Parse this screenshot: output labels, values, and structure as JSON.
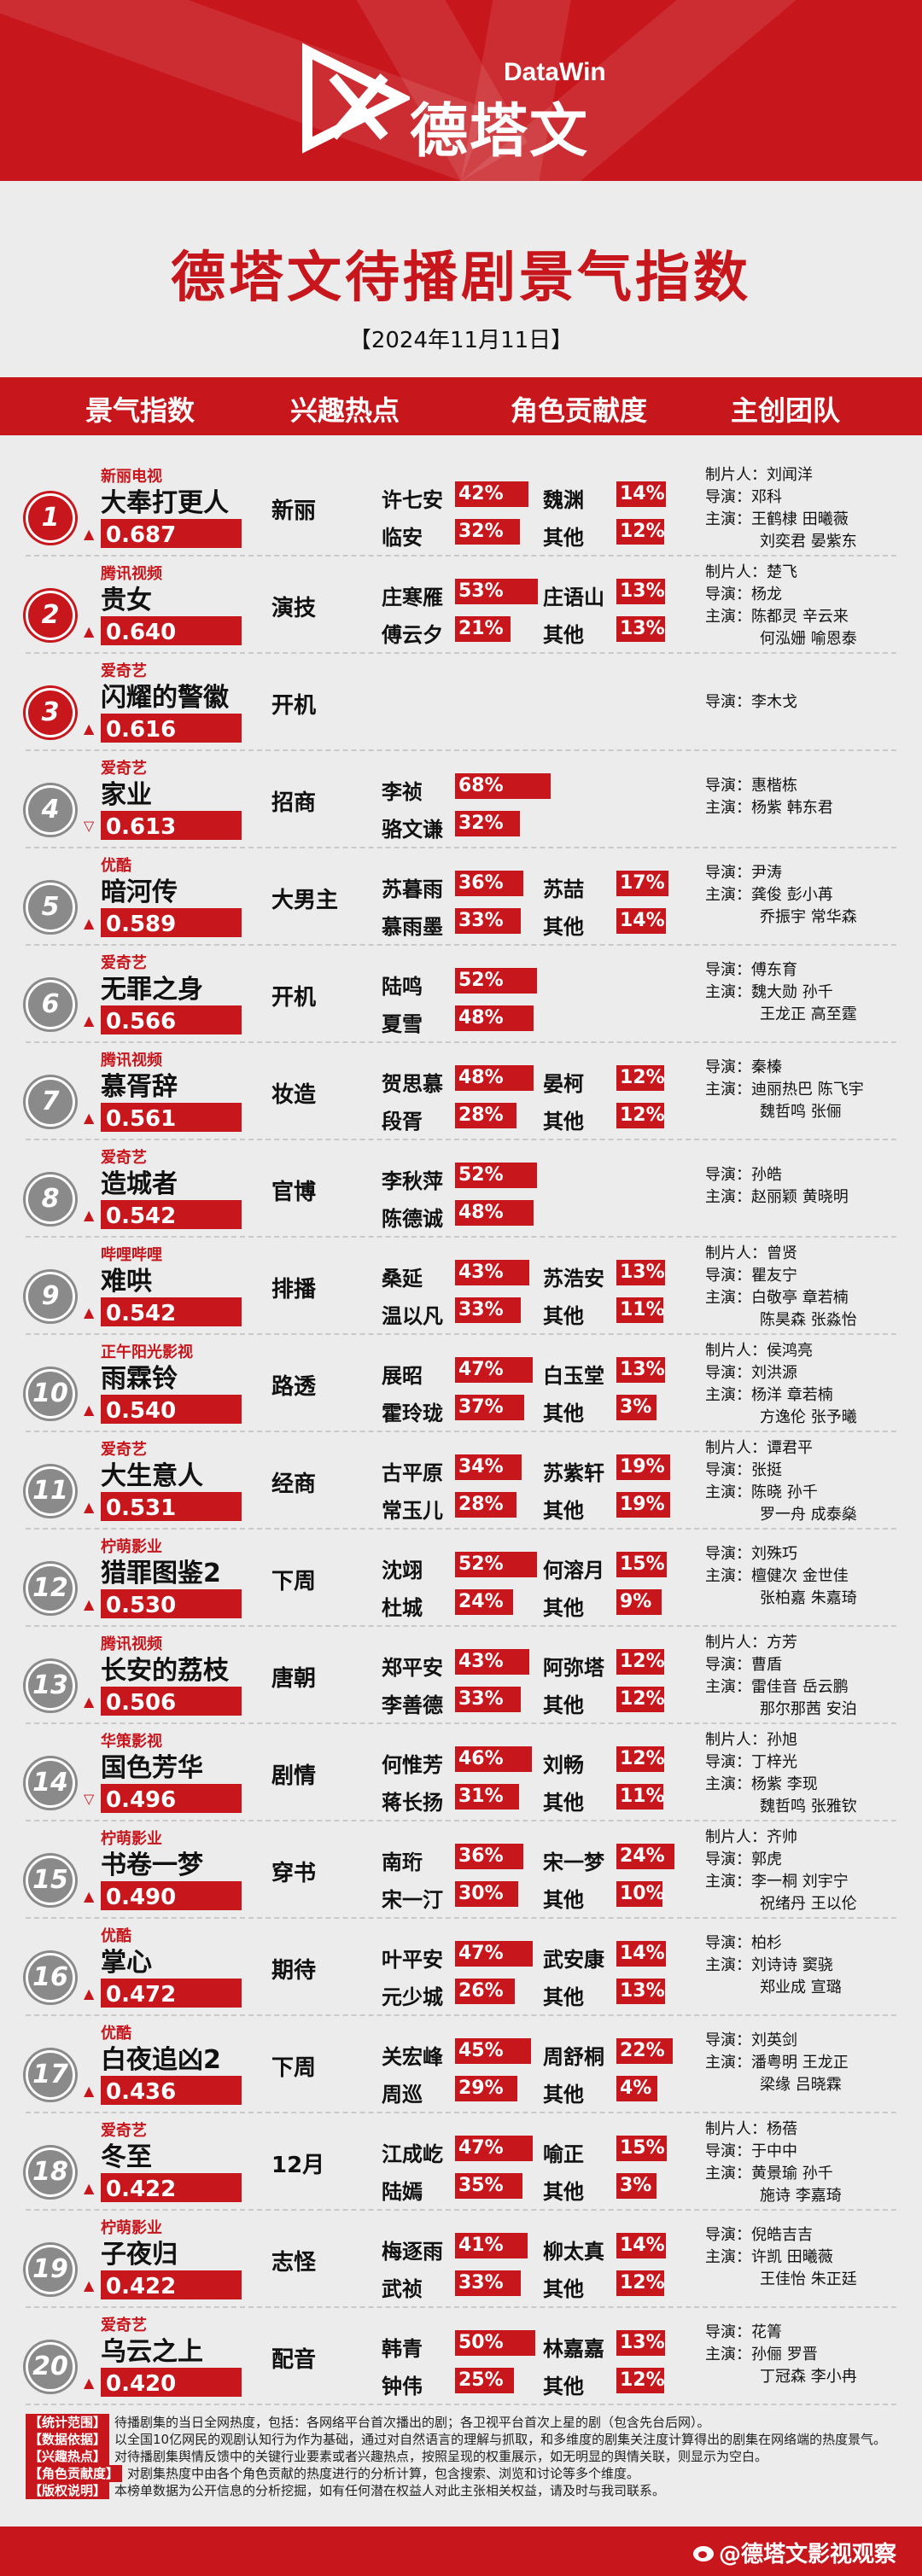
{
  "brand": {
    "datawin": "DataWin",
    "name": "德塔文"
  },
  "title": "德塔文待播剧景气指数",
  "date": "【2024年11月11日】",
  "headers": {
    "index": "景气指数",
    "hot": "兴趣热点",
    "role": "角色贡献度",
    "team": "主创团队"
  },
  "colors": {
    "accent": "#c7161c",
    "rank_gray": "#8a8a8a"
  },
  "chart_data": {
    "type": "table",
    "rows": [
      {
        "rank": "1",
        "platform": "新丽电视",
        "show": "大奉打更人",
        "index": "0.687",
        "trend": "up",
        "hot": "新丽",
        "r1": "许七安",
        "p1": "42%",
        "r2": "魏渊",
        "p2": "14%",
        "r3": "临安",
        "p3": "32%",
        "r4": "其他",
        "p4": "12%",
        "team": [
          "制片人：刘闻洋",
          "导演：邓科",
          "主演：王鹤棣  田曦薇",
          "刘奕君  晏紫东"
        ]
      },
      {
        "rank": "2",
        "platform": "腾讯视频",
        "show": "贵女",
        "index": "0.640",
        "trend": "up",
        "hot": "演技",
        "r1": "庄寒雁",
        "p1": "53%",
        "r2": "庄语山",
        "p2": "13%",
        "r3": "傅云夕",
        "p3": "21%",
        "r4": "其他",
        "p4": "13%",
        "team": [
          "制片人：楚飞",
          "导演：杨龙",
          "主演：陈都灵  辛云来",
          "何泓姗  喻恩泰"
        ]
      },
      {
        "rank": "3",
        "platform": "爱奇艺",
        "show": "闪耀的警徽",
        "index": "0.616",
        "trend": "up",
        "hot": "开机",
        "r1": "",
        "p1": "",
        "r2": "",
        "p2": "",
        "r3": "",
        "p3": "",
        "r4": "",
        "p4": "",
        "team": [
          "导演：李木戈"
        ]
      },
      {
        "rank": "4",
        "platform": "爱奇艺",
        "show": "家业",
        "index": "0.613",
        "trend": "down",
        "hot": "招商",
        "r1": "李祯",
        "p1": "68%",
        "r2": "",
        "p2": "",
        "r3": "骆文谦",
        "p3": "32%",
        "r4": "",
        "p4": "",
        "team": [
          "导演：惠楷栋",
          "主演：杨紫  韩东君"
        ]
      },
      {
        "rank": "5",
        "platform": "优酷",
        "show": "暗河传",
        "index": "0.589",
        "trend": "up",
        "hot": "大男主",
        "r1": "苏暮雨",
        "p1": "36%",
        "r2": "苏喆",
        "p2": "17%",
        "r3": "慕雨墨",
        "p3": "33%",
        "r4": "其他",
        "p4": "14%",
        "team": [
          "导演：尹涛",
          "主演：龚俊  彭小苒",
          "乔振宇  常华森"
        ]
      },
      {
        "rank": "6",
        "platform": "爱奇艺",
        "show": "无罪之身",
        "index": "0.566",
        "trend": "up",
        "hot": "开机",
        "r1": "陆鸣",
        "p1": "52%",
        "r2": "",
        "p2": "",
        "r3": "夏雪",
        "p3": "48%",
        "r4": "",
        "p4": "",
        "team": [
          "导演：傅东育",
          "主演：魏大勋  孙千",
          "王龙正  高至霆"
        ]
      },
      {
        "rank": "7",
        "platform": "腾讯视频",
        "show": "慕胥辞",
        "index": "0.561",
        "trend": "up",
        "hot": "妆造",
        "r1": "贺思慕",
        "p1": "48%",
        "r2": "晏柯",
        "p2": "12%",
        "r3": "段胥",
        "p3": "28%",
        "r4": "其他",
        "p4": "12%",
        "team": [
          "导演：秦榛",
          "主演：迪丽热巴  陈飞宇",
          "魏哲鸣  张俪"
        ]
      },
      {
        "rank": "8",
        "platform": "爱奇艺",
        "show": "造城者",
        "index": "0.542",
        "trend": "up",
        "hot": "官博",
        "r1": "李秋萍",
        "p1": "52%",
        "r2": "",
        "p2": "",
        "r3": "陈德诚",
        "p3": "48%",
        "r4": "",
        "p4": "",
        "team": [
          "导演：孙皓",
          "主演：赵丽颖  黄晓明"
        ]
      },
      {
        "rank": "9",
        "platform": "哔哩哔哩",
        "show": "难哄",
        "index": "0.542",
        "trend": "up",
        "hot": "排播",
        "r1": "桑延",
        "p1": "43%",
        "r2": "苏浩安",
        "p2": "13%",
        "r3": "温以凡",
        "p3": "33%",
        "r4": "其他",
        "p4": "11%",
        "team": [
          "制片人：曾贤",
          "导演：瞿友宁",
          "主演：白敬亭  章若楠",
          "陈昊森  张淼怡"
        ]
      },
      {
        "rank": "10",
        "platform": "正午阳光影视",
        "show": "雨霖铃",
        "index": "0.540",
        "trend": "up",
        "hot": "路透",
        "r1": "展昭",
        "p1": "47%",
        "r2": "白玉堂",
        "p2": "13%",
        "r3": "霍玲珑",
        "p3": "37%",
        "r4": "其他",
        "p4": "3%",
        "team": [
          "制片人：侯鸿亮",
          "导演：刘洪源",
          "主演：杨洋  章若楠",
          "方逸伦  张予曦"
        ]
      },
      {
        "rank": "11",
        "platform": "爱奇艺",
        "show": "大生意人",
        "index": "0.531",
        "trend": "up",
        "hot": "经商",
        "r1": "古平原",
        "p1": "34%",
        "r2": "苏紫轩",
        "p2": "19%",
        "r3": "常玉儿",
        "p3": "28%",
        "r4": "其他",
        "p4": "19%",
        "team": [
          "制片人：谭君平",
          "导演：张挺",
          "主演：陈晓  孙千",
          "罗一舟  成泰燊"
        ]
      },
      {
        "rank": "12",
        "platform": "柠萌影业",
        "show": "猎罪图鉴2",
        "index": "0.530",
        "trend": "up",
        "hot": "下周",
        "r1": "沈翊",
        "p1": "52%",
        "r2": "何溶月",
        "p2": "15%",
        "r3": "杜城",
        "p3": "24%",
        "r4": "其他",
        "p4": "9%",
        "team": [
          "导演：刘殊巧",
          "主演：檀健次  金世佳",
          "张柏嘉  朱嘉琦"
        ]
      },
      {
        "rank": "13",
        "platform": "腾讯视频",
        "show": "长安的荔枝",
        "index": "0.506",
        "trend": "up",
        "hot": "唐朝",
        "r1": "郑平安",
        "p1": "43%",
        "r2": "阿弥塔",
        "p2": "12%",
        "r3": "李善德",
        "p3": "33%",
        "r4": "其他",
        "p4": "12%",
        "team": [
          "制片人：方芳",
          "导演：曹盾",
          "主演：雷佳音  岳云鹏",
          "那尔那茜  安泊"
        ]
      },
      {
        "rank": "14",
        "platform": "华策影视",
        "show": "国色芳华",
        "index": "0.496",
        "trend": "down",
        "hot": "剧情",
        "r1": "何惟芳",
        "p1": "46%",
        "r2": "刘畅",
        "p2": "12%",
        "r3": "蒋长扬",
        "p3": "31%",
        "r4": "其他",
        "p4": "11%",
        "team": [
          "制片人：孙旭",
          "导演：丁梓光",
          "主演：杨紫  李现",
          "魏哲鸣  张雅钦"
        ]
      },
      {
        "rank": "15",
        "platform": "柠萌影业",
        "show": "书卷一梦",
        "index": "0.490",
        "trend": "up",
        "hot": "穿书",
        "r1": "南珩",
        "p1": "36%",
        "r2": "宋一梦",
        "p2": "24%",
        "r3": "宋一汀",
        "p3": "30%",
        "r4": "其他",
        "p4": "10%",
        "team": [
          "制片人：齐帅",
          "导演：郭虎",
          "主演：李一桐  刘宇宁",
          "祝绪丹  王以伦"
        ]
      },
      {
        "rank": "16",
        "platform": "优酷",
        "show": "掌心",
        "index": "0.472",
        "trend": "up",
        "hot": "期待",
        "r1": "叶平安",
        "p1": "47%",
        "r2": "武安康",
        "p2": "14%",
        "r3": "元少城",
        "p3": "26%",
        "r4": "其他",
        "p4": "13%",
        "team": [
          "导演：柏杉",
          "主演：刘诗诗  窦骁",
          "郑业成  宣璐"
        ]
      },
      {
        "rank": "17",
        "platform": "优酷",
        "show": "白夜追凶2",
        "index": "0.436",
        "trend": "up",
        "hot": "下周",
        "r1": "关宏峰",
        "p1": "45%",
        "r2": "周舒桐",
        "p2": "22%",
        "r3": "周巡",
        "p3": "29%",
        "r4": "其他",
        "p4": "4%",
        "team": [
          "导演：刘英剑",
          "主演：潘粤明  王龙正",
          "梁缘  吕晓霖"
        ]
      },
      {
        "rank": "18",
        "platform": "爱奇艺",
        "show": "冬至",
        "index": "0.422",
        "trend": "up",
        "hot": "12月",
        "r1": "江成屹",
        "p1": "47%",
        "r2": "喻正",
        "p2": "15%",
        "r3": "陆嫣",
        "p3": "35%",
        "r4": "其他",
        "p4": "3%",
        "team": [
          "制片人：杨蓓",
          "导演：于中中",
          "主演：黄景瑜  孙千",
          "施诗  李嘉琦"
        ]
      },
      {
        "rank": "19",
        "platform": "柠萌影业",
        "show": "子夜归",
        "index": "0.422",
        "trend": "up",
        "hot": "志怪",
        "r1": "梅逐雨",
        "p1": "41%",
        "r2": "柳太真",
        "p2": "14%",
        "r3": "武祯",
        "p3": "33%",
        "r4": "其他",
        "p4": "12%",
        "team": [
          "导演：倪皓吉吉",
          "主演：许凯  田曦薇",
          "王佳怡  朱正廷"
        ]
      },
      {
        "rank": "20",
        "platform": "爱奇艺",
        "show": "乌云之上",
        "index": "0.420",
        "trend": "up",
        "hot": "配音",
        "r1": "韩青",
        "p1": "50%",
        "r2": "林嘉嘉",
        "p2": "13%",
        "r3": "钟伟",
        "p3": "25%",
        "r4": "其他",
        "p4": "12%",
        "team": [
          "导演：花箐",
          "主演：孙俪  罗晋",
          "丁冠森  李小冉"
        ]
      }
    ]
  },
  "notes": [
    {
      "tag": "【统计范围】",
      "text": "待播剧集的当日全网热度，包括：各网络平台首次播出的剧；各卫视平台首次上星的剧（包含先台后网）。"
    },
    {
      "tag": "【数据依据】",
      "text": "以全国10亿网民的观剧认知行为作为基础，通过对自然语言的理解与抓取，和多维度的剧集关注度计算得出的剧集在网络端的热度景气。"
    },
    {
      "tag": "【兴趣热点】",
      "text": "对待播剧集舆情反馈中的关键行业要素或者兴趣热点，按照呈现的权重展示，如无明显的舆情关联，则显示为空白。"
    },
    {
      "tag": "【角色贡献度】",
      "text": "对剧集热度中由各个角色贡献的热度进行的分析计算，包含搜索、浏览和讨论等多个维度。"
    },
    {
      "tag": "【版权说明】",
      "text": "本榜单数据为公开信息的分析挖掘，如有任何潜在权益人对此主张相关权益，请及时与我司联系。"
    }
  ],
  "footer": "@德塔文影视观察"
}
